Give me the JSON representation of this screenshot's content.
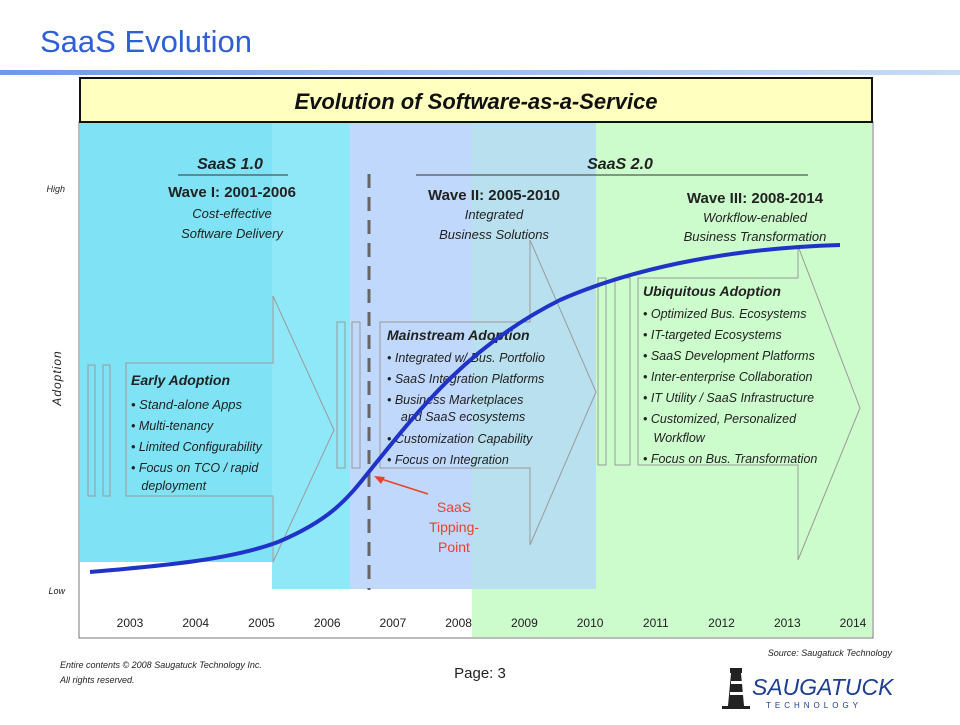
{
  "slide": {
    "title": "SaaS Evolution",
    "page": "Page: 3",
    "copyright_line1": "Entire contents © 2008 Saugatuck Technology Inc.",
    "copyright_line2": "All rights reserved.",
    "source": "Source: Saugatuck Technology",
    "logo_main": "SAUGATUCK",
    "logo_sub": "TECHNOLOGY"
  },
  "diagram": {
    "banner": "Evolution of Software-as-a-Service",
    "y_axis_label": "Adoption",
    "y_high": "High",
    "y_low": "Low",
    "years": [
      "2003",
      "2004",
      "2005",
      "2006",
      "2007",
      "2008",
      "2009",
      "2010",
      "2011",
      "2012",
      "2013",
      "2014"
    ],
    "saas1": "SaaS 1.0",
    "saas2": "SaaS 2.0",
    "waves": [
      {
        "title": "Wave I: 2001-2006",
        "line1": "Cost-effective",
        "line2": "Software Delivery"
      },
      {
        "title": "Wave II: 2005-2010",
        "line1": "Integrated",
        "line2": "Business Solutions"
      },
      {
        "title": "Wave III: 2008-2014",
        "line1": "Workflow-enabled",
        "line2": "Business Transformation"
      }
    ],
    "phases": [
      {
        "heading": "Early Adoption",
        "items": [
          "• Stand-alone Apps",
          "• Multi-tenancy",
          "• Limited Configurability",
          "• Focus on TCO / rapid",
          "   deployment"
        ]
      },
      {
        "heading": "Mainstream Adoption",
        "items": [
          "• Integrated w/ Bus. Portfolio",
          "• SaaS Integration Platforms",
          "• Business Marketplaces",
          "    and SaaS ecosystems",
          "• Customization Capability",
          "• Focus on Integration"
        ]
      },
      {
        "heading": "Ubiquitous Adoption",
        "items": [
          "• Optimized Bus. Ecosystems",
          "• IT-targeted Ecosystems",
          "• SaaS Development Platforms",
          "• Inter-enterprise Collaboration",
          "• IT Utility / SaaS Infrastructure",
          "• Customized, Personalized",
          "   Workflow",
          "• Focus on Bus. Transformation"
        ]
      }
    ],
    "tipping": [
      "SaaS",
      "Tipping-",
      "Point"
    ],
    "colors": {
      "title_blue": "#2e5fd6",
      "banner_fill": "#ffffc0",
      "wave1": "#7fe3f5",
      "wave1_overlap": "#8fe8f8",
      "wave2": "#c0d8fb",
      "wave3": "#ccfbcc",
      "curve": "#1f33c8",
      "tipping": "#e8422c"
    }
  }
}
